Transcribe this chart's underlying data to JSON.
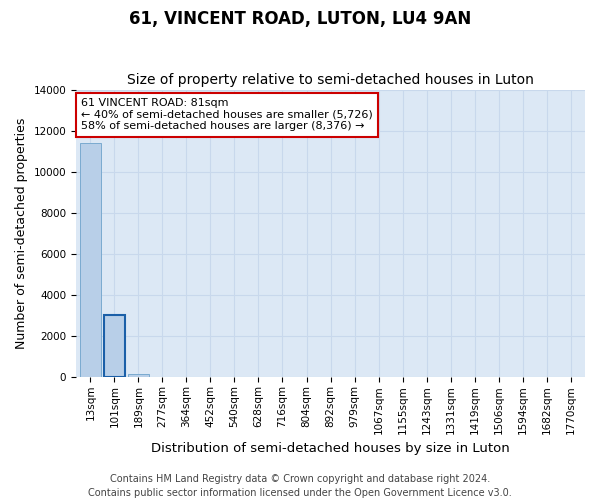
{
  "title": "61, VINCENT ROAD, LUTON, LU4 9AN",
  "subtitle": "Size of property relative to semi-detached houses in Luton",
  "xlabel": "Distribution of semi-detached houses by size in Luton",
  "ylabel": "Number of semi-detached properties",
  "categories": [
    "13sqm",
    "101sqm",
    "189sqm",
    "277sqm",
    "364sqm",
    "452sqm",
    "540sqm",
    "628sqm",
    "716sqm",
    "804sqm",
    "892sqm",
    "979sqm",
    "1067sqm",
    "1155sqm",
    "1243sqm",
    "1331sqm",
    "1419sqm",
    "1506sqm",
    "1594sqm",
    "1682sqm",
    "1770sqm"
  ],
  "values": [
    11380,
    3020,
    170,
    0,
    0,
    0,
    0,
    0,
    0,
    0,
    0,
    0,
    0,
    0,
    0,
    0,
    0,
    0,
    0,
    0,
    0
  ],
  "bar_color": "#b8cfe8",
  "bar_edge_color": "#7aaad0",
  "highlight_bar_index": 1,
  "highlight_bar_edge_color": "#1a5fa8",
  "ylim": [
    0,
    14000
  ],
  "yticks": [
    0,
    2000,
    4000,
    6000,
    8000,
    10000,
    12000,
    14000
  ],
  "annotation_title": "61 VINCENT ROAD: 81sqm",
  "annotation_line1": "← 40% of semi-detached houses are smaller (5,726)",
  "annotation_line2": "58% of semi-detached houses are larger (8,376) →",
  "annotation_box_color": "#ffffff",
  "annotation_border_color": "#cc0000",
  "footer_line1": "Contains HM Land Registry data © Crown copyright and database right 2024.",
  "footer_line2": "Contains public sector information licensed under the Open Government Licence v3.0.",
  "grid_color": "#c8d8ec",
  "background_color": "#dce8f5",
  "title_fontsize": 12,
  "subtitle_fontsize": 10,
  "axis_label_fontsize": 9,
  "tick_fontsize": 7.5,
  "annotation_fontsize": 8,
  "footer_fontsize": 7,
  "property_bar_index": 1
}
